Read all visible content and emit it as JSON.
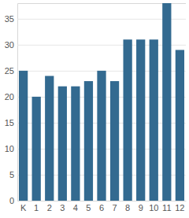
{
  "chart_data": {
    "type": "bar",
    "categories": [
      "K",
      "1",
      "2",
      "3",
      "4",
      "5",
      "6",
      "7",
      "8",
      "9",
      "10",
      "11",
      "12"
    ],
    "values": [
      25,
      20,
      24,
      22,
      22,
      23,
      25,
      23,
      31,
      31,
      31,
      38,
      29
    ],
    "color": "#336a90",
    "ylim": [
      0,
      38
    ],
    "yticks": [
      0,
      5,
      10,
      15,
      20,
      25,
      30,
      35
    ],
    "grid": true
  }
}
